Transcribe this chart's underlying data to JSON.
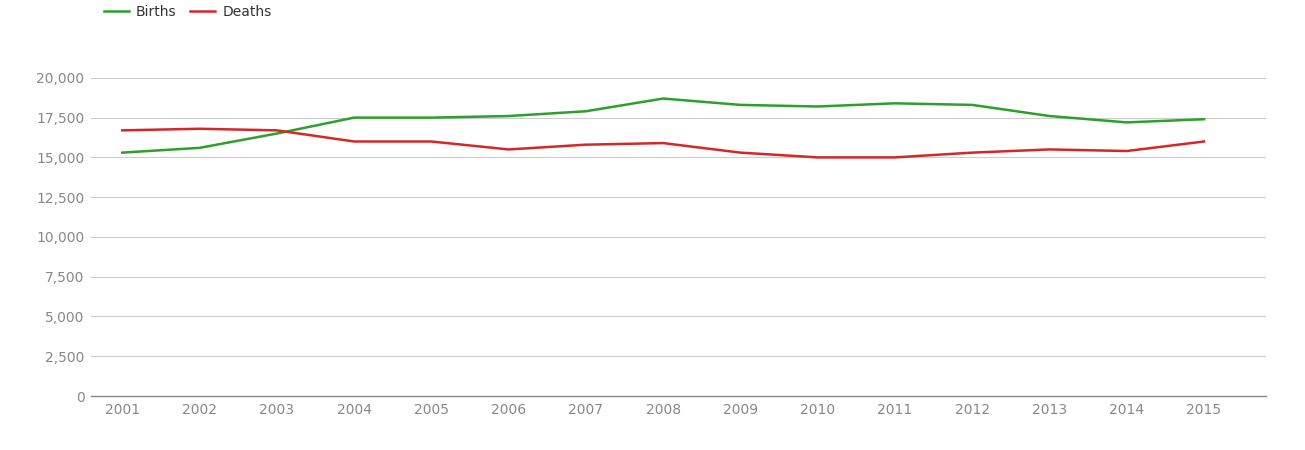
{
  "years": [
    2001,
    2002,
    2003,
    2004,
    2005,
    2006,
    2007,
    2008,
    2009,
    2010,
    2011,
    2012,
    2013,
    2014,
    2015
  ],
  "births": [
    15300,
    15600,
    16500,
    17500,
    17500,
    17600,
    17900,
    18700,
    18300,
    18200,
    18400,
    18300,
    17600,
    17200,
    17400
  ],
  "deaths": [
    16700,
    16800,
    16700,
    16000,
    16000,
    15500,
    15800,
    15900,
    15300,
    15000,
    15000,
    15300,
    15500,
    15400,
    16000
  ],
  "births_color": "#2ca02c",
  "deaths_color": "#d62728",
  "line_width": 1.8,
  "background_color": "#ffffff",
  "grid_color": "#cccccc",
  "yticks": [
    0,
    2500,
    5000,
    7500,
    10000,
    12500,
    15000,
    17500,
    20000
  ],
  "ylim": [
    0,
    21500
  ],
  "xlim": [
    2000.6,
    2015.8
  ],
  "legend_labels": [
    "Births",
    "Deaths"
  ],
  "xlabel": "",
  "ylabel": "",
  "tick_color": "#888888",
  "tick_fontsize": 10,
  "legend_fontsize": 10
}
